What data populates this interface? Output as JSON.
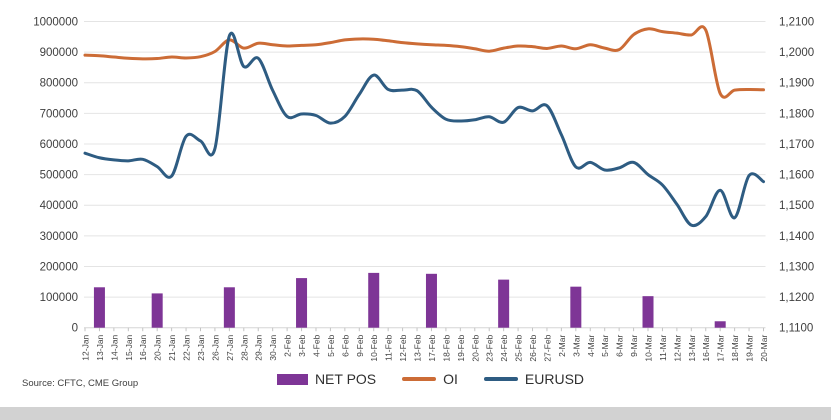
{
  "source_note": "Source: CFTC, CME Group",
  "colors": {
    "net_pos": "#7e3596",
    "oi": "#cc6c36",
    "eurusd": "#2e5c82",
    "gridline": "#e4e4e4",
    "axis_line": "#d6d6d6",
    "tick_mark": "#c3c3c3",
    "axis_text": "#3f3f3f"
  },
  "chart_data": {
    "type": "combo",
    "title": "",
    "grid": true,
    "legend_position": "bottom",
    "categories": [
      "12-Jan",
      "13-Jan",
      "14-Jan",
      "15-Jan",
      "16-Jan",
      "20-Jan",
      "21-Jan",
      "22-Jan",
      "23-Jan",
      "26-Jan",
      "27-Jan",
      "28-Jan",
      "29-Jan",
      "30-Jan",
      "2-Feb",
      "3-Feb",
      "4-Feb",
      "5-Feb",
      "6-Feb",
      "9-Feb",
      "10-Feb",
      "11-Feb",
      "12-Feb",
      "13-Feb",
      "17-Feb",
      "18-Feb",
      "19-Feb",
      "20-Feb",
      "23-Feb",
      "24-Feb",
      "25-Feb",
      "26-Feb",
      "27-Feb",
      "2-Mar",
      "3-Mar",
      "4-Mar",
      "5-Mar",
      "6-Mar",
      "9-Mar",
      "10-Mar",
      "11-Mar",
      "12-Mar",
      "13-Mar",
      "16-Mar",
      "17-Mar",
      "18-Mar",
      "19-Mar",
      "20-Mar"
    ],
    "left_axis": {
      "min": 0,
      "max": 1000000,
      "step": 100000,
      "tick_labels": [
        "1000000",
        "900000",
        "800000",
        "700000",
        "600000",
        "500000",
        "400000",
        "300000",
        "200000",
        "100000",
        "0"
      ]
    },
    "right_axis": {
      "min": 1.11,
      "max": 1.21,
      "step": 0.01,
      "tick_labels": [
        "1,2100",
        "1,2000",
        "1,1900",
        "1,1800",
        "1,1700",
        "1,1600",
        "1,1500",
        "1,1400",
        "1,1300",
        "1,1200",
        "1,1100"
      ]
    },
    "series": [
      {
        "name": "NET POS",
        "type": "bar",
        "axis": "left",
        "values": [
          null,
          132000,
          null,
          null,
          null,
          112000,
          null,
          null,
          null,
          null,
          132000,
          null,
          null,
          null,
          null,
          162000,
          null,
          null,
          null,
          null,
          179000,
          null,
          null,
          null,
          176000,
          null,
          null,
          null,
          null,
          157000,
          null,
          null,
          null,
          null,
          134000,
          null,
          null,
          null,
          null,
          103000,
          null,
          null,
          null,
          null,
          21000,
          null,
          null,
          null
        ]
      },
      {
        "name": "OI",
        "type": "line",
        "axis": "left",
        "values": [
          890000,
          888000,
          884000,
          880000,
          878000,
          879000,
          884000,
          881000,
          885000,
          902000,
          940000,
          913000,
          929000,
          924000,
          920000,
          922000,
          924000,
          931000,
          940000,
          943000,
          942000,
          937000,
          931000,
          927000,
          924000,
          922000,
          918000,
          911000,
          903000,
          913000,
          920000,
          918000,
          912000,
          920000,
          911000,
          924000,
          913000,
          908000,
          957000,
          976000,
          967000,
          962000,
          956000,
          972000,
          765000,
          776000,
          778000,
          777000
        ]
      },
      {
        "name": "EURUSD",
        "type": "line",
        "axis": "right",
        "values": [
          1.167,
          1.1655,
          1.1648,
          1.1645,
          1.165,
          1.1626,
          1.1595,
          1.1725,
          1.171,
          1.1685,
          1.2053,
          1.1953,
          1.198,
          1.1875,
          1.179,
          1.1798,
          1.1793,
          1.1768,
          1.179,
          1.1862,
          1.1925,
          1.1878,
          1.1876,
          1.1874,
          1.182,
          1.1781,
          1.1775,
          1.1779,
          1.1789,
          1.1771,
          1.1819,
          1.1808,
          1.1825,
          1.173,
          1.1625,
          1.164,
          1.1615,
          1.1622,
          1.164,
          1.16,
          1.1566,
          1.1503,
          1.1435,
          1.1463,
          1.1549,
          1.1459,
          1.1597,
          1.1577
        ]
      }
    ]
  }
}
